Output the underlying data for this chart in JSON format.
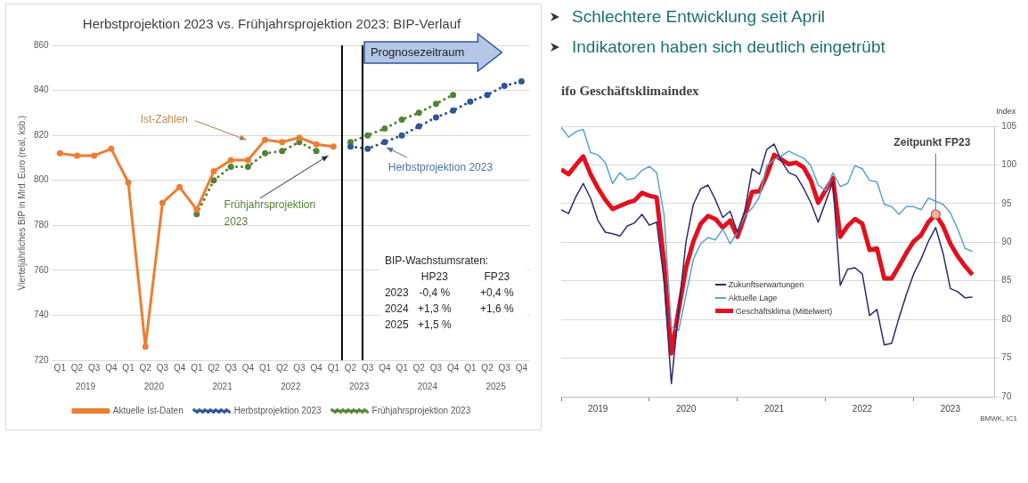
{
  "chart_data": [
    {
      "type": "line",
      "title": "Herbstprojektion 2023 vs. Frühjahrsprojektion 2023: BIP-Verlauf",
      "ylabel": "Vierteljährliches BIP in Mrd. Euro (real, ksb.)",
      "categories": [
        "Q1",
        "Q2",
        "Q3",
        "Q4",
        "Q1",
        "Q2",
        "Q3",
        "Q4",
        "Q1",
        "Q2",
        "Q3",
        "Q4",
        "Q1",
        "Q2",
        "Q3",
        "Q4",
        "Q1",
        "Q2",
        "Q3",
        "Q4",
        "Q1",
        "Q2",
        "Q3",
        "Q4",
        "Q1",
        "Q2",
        "Q3",
        "Q4"
      ],
      "series": [
        {
          "name": "Aktuelle Ist-Daten",
          "color": "#ed7d31",
          "line_style": "solid",
          "values": [
            812,
            811,
            811,
            814,
            799,
            726,
            790,
            797,
            787,
            804,
            809,
            809,
            818,
            817,
            819,
            816,
            815,
            null,
            null,
            null,
            null,
            null,
            null,
            null,
            null,
            null,
            null,
            null
          ]
        },
        {
          "name": "Herbstprojektion 2023",
          "color": "#2f5597",
          "line_style": "dotted",
          "values": [
            null,
            null,
            null,
            null,
            null,
            null,
            null,
            null,
            null,
            null,
            null,
            null,
            null,
            null,
            null,
            null,
            null,
            815,
            814,
            817,
            820,
            824,
            828,
            831,
            835,
            838,
            842,
            844
          ]
        },
        {
          "name": "Frühjahrsprojektion 2023",
          "color": "#548235",
          "line_style": "dotted",
          "values": [
            null,
            null,
            null,
            null,
            null,
            null,
            null,
            null,
            785,
            800,
            806,
            806,
            812,
            813,
            817,
            813,
            null,
            817,
            820,
            823,
            827,
            830,
            834,
            838,
            null,
            null,
            null,
            null
          ]
        }
      ],
      "ylim": [
        720,
        860
      ],
      "yticks": [
        720,
        740,
        760,
        780,
        800,
        820,
        840,
        860
      ],
      "grid": "y",
      "legend": "bottom",
      "marker": "circle",
      "annotations": [
        "Ist-Zahlen",
        "Frühjahrsprojektion 2023",
        "Herbstprojektion 2023",
        "Prognosezeitraum",
        "BIP-Wachstumsraten:",
        "HP23",
        "FP23",
        "2023",
        "-0,4 %",
        "+0,4 %",
        "2024",
        "+1,3 %",
        "+1,6 %",
        "2025",
        "+1,5 %",
        "2019",
        "2020",
        "2021",
        "2022",
        "2023",
        "2024",
        "2025"
      ]
    },
    {
      "type": "line",
      "title": "ifo Geschäftsklimaindex",
      "ylabel": "Index",
      "x": [
        "2019-01",
        "2019-02",
        "2019-03",
        "2019-04",
        "2019-05",
        "2019-06",
        "2019-07",
        "2019-08",
        "2019-09",
        "2019-10",
        "2019-11",
        "2019-12",
        "2020-01",
        "2020-02",
        "2020-03",
        "2020-04",
        "2020-05",
        "2020-06",
        "2020-07",
        "2020-08",
        "2020-09",
        "2020-10",
        "2020-11",
        "2020-12",
        "2021-01",
        "2021-02",
        "2021-03",
        "2021-04",
        "2021-05",
        "2021-06",
        "2021-07",
        "2021-08",
        "2021-09",
        "2021-10",
        "2021-11",
        "2021-12",
        "2022-01",
        "2022-02",
        "2022-03",
        "2022-04",
        "2022-05",
        "2022-06",
        "2022-07",
        "2022-08",
        "2022-09",
        "2022-10",
        "2022-11",
        "2022-12",
        "2023-01",
        "2023-02",
        "2023-03",
        "2023-04",
        "2023-05",
        "2023-06",
        "2023-07",
        "2023-08",
        "2023-09"
      ],
      "series": [
        {
          "name": "Zukunftserwartungen",
          "color": "#2b2a6b",
          "values": [
            94.2,
            93.7,
            95.9,
            97.6,
            95.7,
            92.8,
            91.3,
            91.1,
            90.8,
            92.1,
            92.5,
            93.6,
            92.2,
            92.6,
            85.1,
            71.7,
            81.3,
            90.1,
            94.9,
            96.9,
            97.4,
            95.5,
            93.2,
            94.0,
            91.3,
            94.0,
            99.5,
            98.8,
            102.0,
            102.7,
            100.5,
            99.0,
            98.6,
            97.0,
            95.1,
            92.6,
            95.2,
            97.8,
            84.4,
            86.5,
            86.7,
            85.9,
            80.5,
            81.3,
            76.7,
            76.9,
            80.2,
            83.2,
            85.9,
            87.8,
            90.1,
            91.9,
            88.6,
            84.0,
            83.6,
            82.8,
            82.9
          ]
        },
        {
          "name": "Aktuelle Lage",
          "color": "#5ba3cf",
          "values": [
            104.9,
            103.6,
            104.3,
            104.6,
            101.6,
            101.3,
            100.3,
            97.6,
            99.0,
            98.1,
            98.3,
            99.3,
            99.8,
            99.0,
            93.6,
            79.0,
            78.6,
            83.2,
            87.8,
            89.8,
            90.6,
            90.3,
            91.7,
            89.8,
            91.3,
            93.4,
            94.4,
            95.9,
            99.9,
            100.7,
            101.2,
            101.8,
            101.3,
            100.9,
            99.9,
            97.4,
            96.7,
            99.0,
            97.2,
            97.6,
            99.9,
            99.5,
            98.0,
            97.8,
            94.9,
            94.6,
            93.6,
            94.6,
            94.6,
            94.2,
            95.7,
            95.3,
            94.9,
            93.8,
            91.7,
            89.2,
            88.8
          ]
        },
        {
          "name": "Geschäftsklima (Mittelwert)",
          "color": "#e3101e",
          "values": [
            99.4,
            98.8,
            100.0,
            101.1,
            98.8,
            97.0,
            95.5,
            94.3,
            94.7,
            95.1,
            95.4,
            96.4,
            96.0,
            95.8,
            87.5,
            75.6,
            81.3,
            86.7,
            90.1,
            92.4,
            93.4,
            93.0,
            91.9,
            92.8,
            90.7,
            93.4,
            96.5,
            96.6,
            98.7,
            101.3,
            100.7,
            100.1,
            100.3,
            99.7,
            98.0,
            95.1,
            96.7,
            98.3,
            90.7,
            92.1,
            93.0,
            92.4,
            89.0,
            89.2,
            85.3,
            85.3,
            86.9,
            88.6,
            90.1,
            90.9,
            92.6,
            93.6,
            92.1,
            89.8,
            88.2,
            86.9,
            85.8
          ]
        }
      ],
      "xlim": [
        "2019-01",
        "2023-12"
      ],
      "xticks": [
        {
          "value": "2019-01",
          "label": null
        },
        {
          "value": "2019-06",
          "label": "2019"
        },
        {
          "value": "2020-01",
          "label": null
        },
        {
          "value": "2020-06",
          "label": "2020"
        },
        {
          "value": "2021-01",
          "label": null
        },
        {
          "value": "2021-06",
          "label": "2021"
        },
        {
          "value": "2022-01",
          "label": null
        },
        {
          "value": "2022-06",
          "label": "2022"
        },
        {
          "value": "2023-01",
          "label": null
        },
        {
          "value": "2023-06",
          "label": "2023"
        }
      ],
      "ylim": [
        70,
        105
      ],
      "yticks": [
        70,
        75,
        80,
        85,
        90,
        95,
        100,
        105
      ],
      "grid": "y",
      "legend": "bottom",
      "annotations": [
        "Schlechtere Entwicklung seit April",
        "Indikatoren haben sich deutlich eingetrübt",
        "BMWK, IC1",
        {
          "text": "Zeitpunkt FP23",
          "x": "2023-04",
          "y": 93.6
        }
      ]
    }
  ]
}
